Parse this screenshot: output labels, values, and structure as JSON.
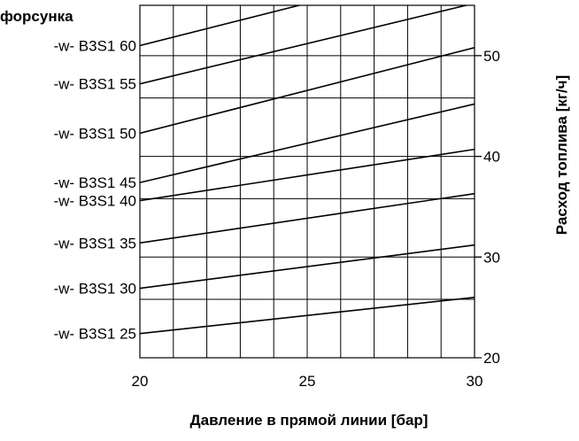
{
  "chart_data": {
    "type": "line",
    "title": "форсунка",
    "xlabel": "Давление в прямой линии [бар]",
    "ylabel": "Расход топлива [кг/ч]",
    "xlim": [
      20,
      30
    ],
    "ylim": [
      20,
      55
    ],
    "x_ticks": [
      "20",
      "25",
      "30"
    ],
    "y_ticks": [
      "20",
      "30",
      "40",
      "50"
    ],
    "grid": true,
    "colors": {
      "line": "#000000",
      "grid": "#000000"
    },
    "series": [
      {
        "name": "-w- B3S1 25",
        "x": [
          20,
          30
        ],
        "y": [
          22.4,
          26.0
        ]
      },
      {
        "name": "-w- B3S1 30",
        "x": [
          20,
          30
        ],
        "y": [
          26.9,
          31.2
        ]
      },
      {
        "name": "-w- B3S1 35",
        "x": [
          20,
          30
        ],
        "y": [
          31.4,
          36.3
        ]
      },
      {
        "name": "-w- B3S1 40",
        "x": [
          20,
          30
        ],
        "y": [
          35.6,
          40.7
        ]
      },
      {
        "name": "-w- B3S1 45",
        "x": [
          20,
          30
        ],
        "y": [
          37.4,
          45.2
        ]
      },
      {
        "name": "-w- B3S1 50",
        "x": [
          20,
          30
        ],
        "y": [
          42.3,
          50.8
        ]
      },
      {
        "name": "-w- B3S1 55",
        "x": [
          20,
          30
        ],
        "y": [
          47.2,
          55.2
        ]
      },
      {
        "name": "-w- B3S1 60",
        "x": [
          20,
          25
        ],
        "y": [
          51.0,
          55.2
        ]
      }
    ]
  }
}
